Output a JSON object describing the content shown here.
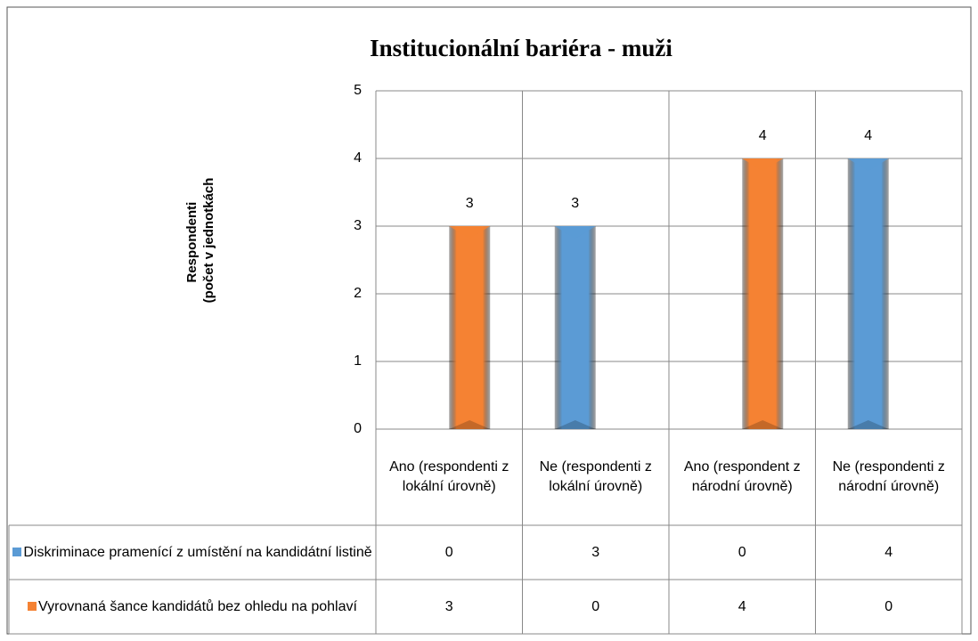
{
  "chart_data": {
    "type": "bar",
    "title": "Institucionální bariéra - muži",
    "y_label": [
      "Respondenti",
      "(počet v jednotkách"
    ],
    "categories": [
      "Ano (respondenti z lokální úrovně)",
      "Ne (respondenti z lokální úrovně)",
      "Ano (respondent z národní úrovně)",
      "Ne (respondenti z národní úrovně)"
    ],
    "series": [
      {
        "name": "Diskriminace pramenící z umístění na kandidátní listině",
        "color": "#5b9bd5",
        "values": [
          0,
          3,
          0,
          4
        ]
      },
      {
        "name": "Vyrovnaná šance kandidátů bez ohledu na pohlaví",
        "color": "#f58233",
        "values": [
          3,
          0,
          4,
          0
        ]
      }
    ],
    "ylim": [
      0,
      5
    ],
    "yticks": [
      0,
      1,
      2,
      3,
      4,
      5
    ],
    "grid": true,
    "data_table": true
  }
}
